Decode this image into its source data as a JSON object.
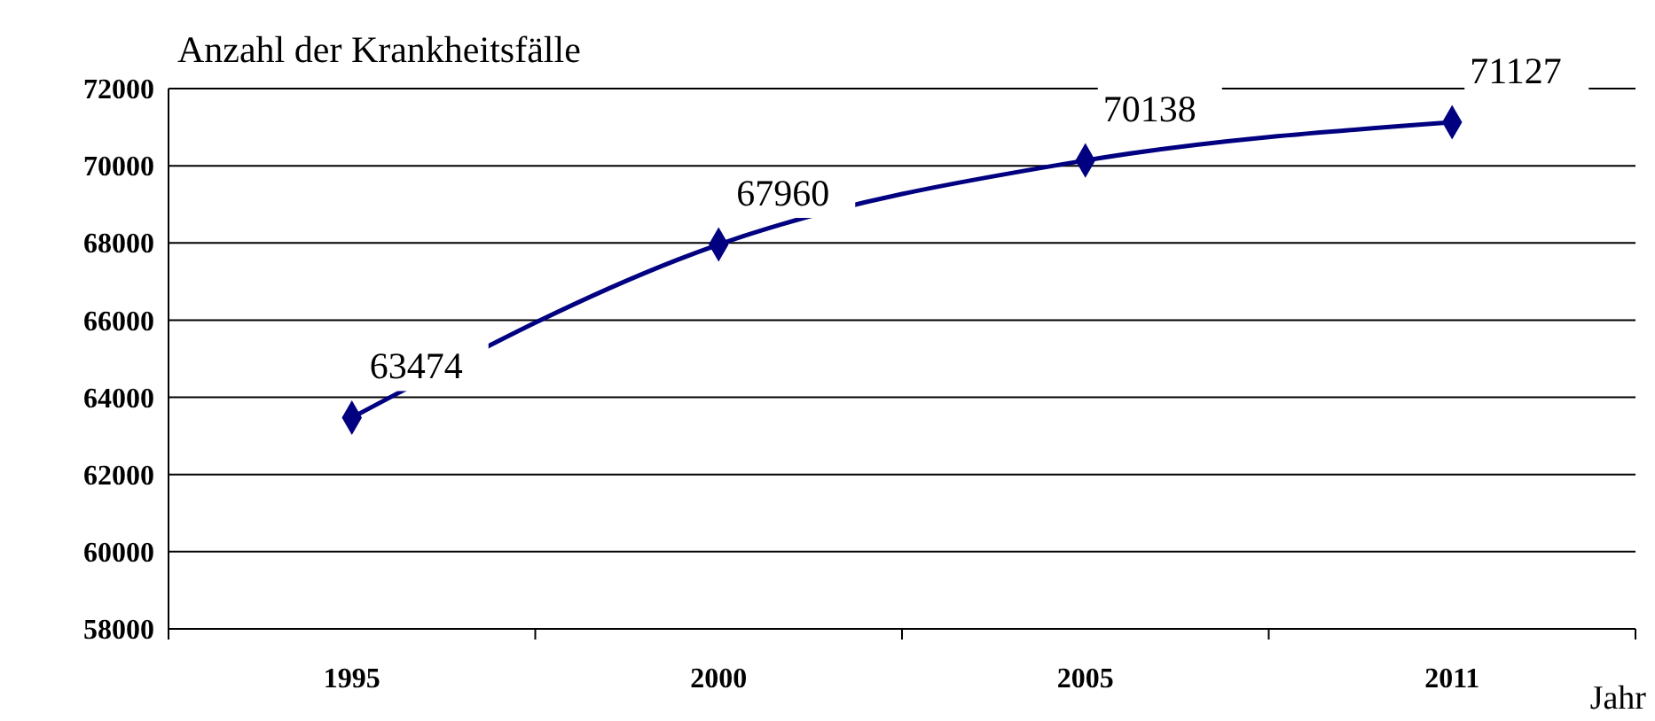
{
  "chart_data": {
    "type": "line",
    "ylabel": "Anzahl der Krankheitsfälle",
    "xlabel": "Jahr",
    "categories": [
      "1995",
      "2000",
      "2005",
      "2011"
    ],
    "series": [
      {
        "color": "#000080",
        "values": [
          63474,
          67960,
          70138,
          71127
        ]
      }
    ],
    "ylim": [
      58000,
      72000
    ],
    "yticks": [
      58000,
      60000,
      62000,
      64000,
      66000,
      68000,
      70000,
      72000
    ],
    "grid": "y",
    "marker": "diamond",
    "line_style": "solid",
    "data_labels": true
  }
}
